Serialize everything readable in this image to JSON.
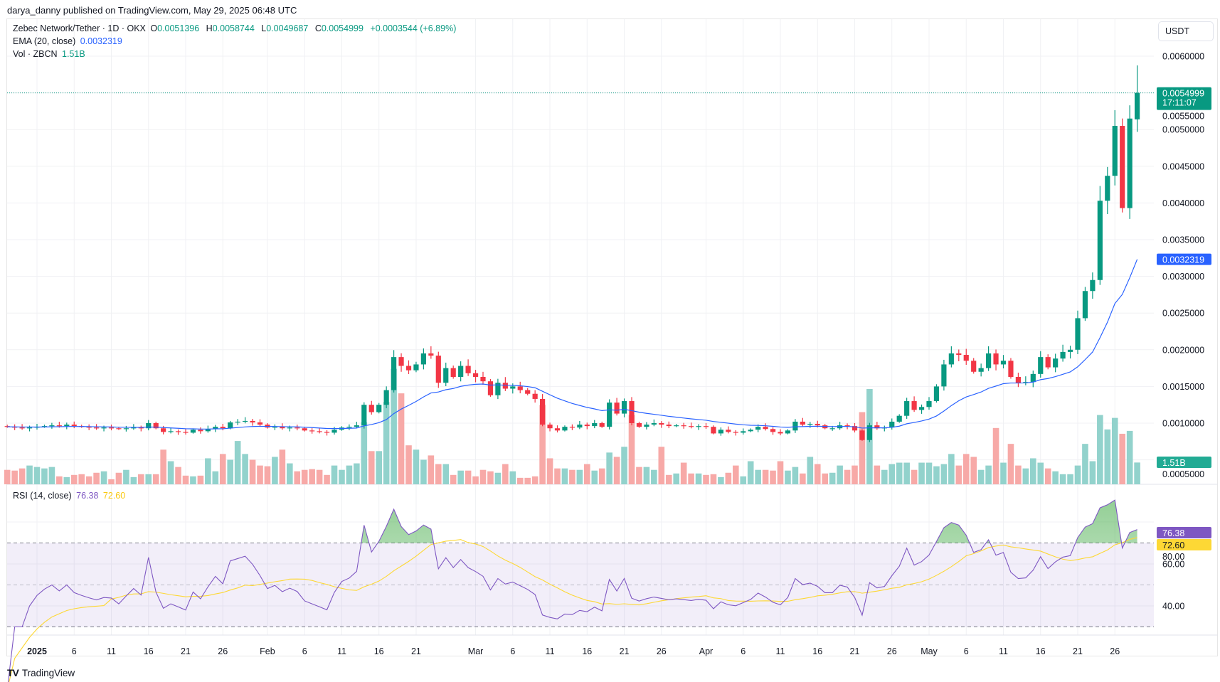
{
  "header": {
    "published": "darya_danny published on TradingView.com, May 29, 2025 06:48 UTC"
  },
  "legend": {
    "symbol": "Zebec Network/Tether · 1D · OKX",
    "o_label": "O",
    "o": "0.0051396",
    "h_label": "H",
    "h": "0.0058744",
    "l_label": "L",
    "l": "0.0049687",
    "c_label": "C",
    "c": "0.0054999",
    "change": "+0.0003544 (+6.89%)",
    "ema_label": "EMA (20, close)",
    "ema_value": "0.0032319",
    "vol_label": "Vol · ZBCN",
    "vol_value": "1.51B",
    "rsi_label": "RSI (14, close)",
    "rsi_value": "76.38",
    "rsi_ma_value": "72.60"
  },
  "currency_button": "USDT",
  "badges": {
    "price": "0.0054999",
    "countdown": "17:11:07",
    "ema": "0.0032319",
    "volume": "1.51B",
    "rsi": "76.38",
    "rsi_ma": "72.60"
  },
  "colors": {
    "up": "#089981",
    "down": "#f23645",
    "ema": "#2962ff",
    "rsi": "#7e57c2",
    "rsi_ma": "#fdd835"
  },
  "branding": "TradingView",
  "chart_data": [
    {
      "type": "candlestick",
      "title": "Zebec Network/Tether · 1D · OKX",
      "start_date": "2024-12-28",
      "end_date": "2025-05-29",
      "ylim": [
        0.0005,
        0.0061
      ],
      "y_ticks": [
        "0.0060000",
        "0.0055000",
        "0.0050000",
        "0.0045000",
        "0.0040000",
        "0.0035000",
        "0.0030000",
        "0.0025000",
        "0.0020000",
        "0.0015000",
        "0.0010000",
        "0.0005000"
      ],
      "y_tick_values": [
        0.006,
        0.0055,
        0.005,
        0.0045,
        0.004,
        0.0035,
        0.003,
        0.0025,
        0.002,
        0.0015,
        0.001,
        0.0005
      ],
      "first_open": 0.00096,
      "last_candle": {
        "open": 0.0051396,
        "high": 0.0058744,
        "low": 0.0049687,
        "close": 0.0054999
      },
      "close": [
        0.00095,
        0.00094,
        0.00093,
        0.00094,
        0.00095,
        0.00096,
        0.00097,
        0.00096,
        0.00098,
        0.00096,
        0.00095,
        0.00094,
        0.00093,
        0.00094,
        0.00093,
        0.00092,
        0.00093,
        0.00094,
        0.00093,
        0.001,
        0.00093,
        0.00088,
        0.00089,
        0.00088,
        0.00087,
        0.00091,
        0.00089,
        0.00092,
        0.00095,
        0.00093,
        0.00101,
        0.00102,
        0.00103,
        0.00101,
        0.00098,
        0.00094,
        0.00095,
        0.00093,
        0.00094,
        0.00093,
        0.0009,
        0.00089,
        0.00088,
        0.00087,
        0.00091,
        0.00094,
        0.00095,
        0.00097,
        0.00125,
        0.00115,
        0.00125,
        0.00145,
        0.0019,
        0.00178,
        0.00172,
        0.0018,
        0.00195,
        0.00192,
        0.00155,
        0.00175,
        0.00163,
        0.00178,
        0.00168,
        0.00163,
        0.00157,
        0.00138,
        0.00155,
        0.00147,
        0.0015,
        0.00145,
        0.0014,
        0.00133,
        0.00098,
        0.00093,
        0.0009,
        0.00095,
        0.00094,
        0.00098,
        0.00096,
        0.001,
        0.00095,
        0.00128,
        0.00113,
        0.0013,
        0.001,
        0.00095,
        0.00098,
        0.001,
        0.00098,
        0.00096,
        0.00097,
        0.00096,
        0.00095,
        0.00096,
        0.00095,
        0.00086,
        0.00091,
        0.00088,
        0.00087,
        0.00089,
        0.00091,
        0.00095,
        0.00092,
        0.00088,
        0.00086,
        0.0009,
        0.00102,
        0.00098,
        0.00099,
        0.00097,
        0.00093,
        0.00093,
        0.00097,
        0.00096,
        0.0009,
        0.00077,
        0.00097,
        0.00093,
        0.00094,
        0.00102,
        0.0011,
        0.0013,
        0.00118,
        0.00122,
        0.0013,
        0.0015,
        0.0018,
        0.00195,
        0.00193,
        0.00185,
        0.0017,
        0.00175,
        0.00195,
        0.0018,
        0.00185,
        0.00163,
        0.00155,
        0.00156,
        0.00167,
        0.0019,
        0.00176,
        0.00188,
        0.00197,
        0.002,
        0.00243,
        0.0028,
        0.00295,
        0.00403,
        0.00437,
        0.00505,
        0.00393,
        0.00515,
        0.0054999
      ],
      "volume_billions": [
        1.0,
        0.95,
        1.1,
        1.3,
        1.2,
        1.1,
        1.2,
        0.55,
        0.5,
        0.65,
        0.7,
        0.55,
        0.8,
        0.9,
        0.35,
        0.8,
        1.0,
        0.5,
        0.7,
        0.7,
        0.7,
        2.4,
        1.6,
        1.2,
        0.6,
        0.55,
        0.6,
        1.8,
        0.9,
        2.1,
        1.7,
        3.0,
        2.1,
        1.7,
        1.3,
        1.25,
        1.9,
        2.4,
        1.45,
        0.9,
        1.0,
        1.05,
        1.0,
        0.65,
        1.3,
        1.0,
        1.3,
        1.45,
        4.3,
        2.3,
        2.3,
        5.7,
        8.0,
        6.3,
        2.7,
        2.4,
        1.7,
        2.0,
        1.4,
        1.4,
        0.65,
        0.95,
        0.95,
        0.55,
        1.0,
        0.9,
        0.8,
        1.4,
        0.9,
        0.45,
        0.45,
        0.55,
        5.5,
        1.8,
        1.1,
        1.1,
        1.0,
        1.0,
        1.4,
        0.95,
        1.1,
        2.2,
        1.9,
        2.6,
        4.8,
        1.2,
        1.2,
        1.0,
        2.6,
        0.65,
        0.75,
        1.5,
        0.75,
        0.75,
        0.65,
        0.7,
        0.5,
        0.8,
        1.3,
        0.55,
        1.6,
        1.0,
        1.0,
        0.95,
        1.6,
        0.95,
        1.2,
        0.75,
        1.9,
        1.4,
        0.75,
        0.8,
        1.3,
        1.0,
        1.3,
        5.0,
        6.6,
        1.3,
        1.0,
        1.4,
        1.5,
        1.5,
        1.0,
        1.5,
        1.5,
        1.25,
        1.4,
        2.1,
        1.3,
        2.1,
        1.9,
        1.0,
        1.3,
        3.9,
        1.5,
        2.8,
        1.3,
        1.1,
        1.8,
        1.5,
        1.1,
        0.9,
        0.7,
        0.7,
        1.3,
        2.8,
        1.6,
        4.8,
        3.8,
        4.6,
        3.5,
        3.7,
        1.51
      ],
      "x_ticks": [
        {
          "label": "2025",
          "day": 4,
          "bold": true
        },
        {
          "label": "6",
          "day": 9
        },
        {
          "label": "11",
          "day": 14
        },
        {
          "label": "16",
          "day": 19
        },
        {
          "label": "21",
          "day": 24
        },
        {
          "label": "26",
          "day": 29
        },
        {
          "label": "Feb",
          "day": 35
        },
        {
          "label": "6",
          "day": 40
        },
        {
          "label": "11",
          "day": 45
        },
        {
          "label": "16",
          "day": 50
        },
        {
          "label": "21",
          "day": 55
        },
        {
          "label": "Mar",
          "day": 63
        },
        {
          "label": "6",
          "day": 68
        },
        {
          "label": "11",
          "day": 73
        },
        {
          "label": "16",
          "day": 78
        },
        {
          "label": "21",
          "day": 83
        },
        {
          "label": "26",
          "day": 88
        },
        {
          "label": "Apr",
          "day": 94
        },
        {
          "label": "6",
          "day": 99
        },
        {
          "label": "11",
          "day": 104
        },
        {
          "label": "16",
          "day": 109
        },
        {
          "label": "21",
          "day": 114
        },
        {
          "label": "26",
          "day": 119
        },
        {
          "label": "May",
          "day": 124
        },
        {
          "label": "6",
          "day": 129
        },
        {
          "label": "11",
          "day": 134
        },
        {
          "label": "16",
          "day": 139
        },
        {
          "label": "21",
          "day": 144
        },
        {
          "label": "26",
          "day": 149
        }
      ],
      "series": [
        {
          "name": "EMA (20, close)",
          "last": 0.0032319
        },
        {
          "name": "Vol · ZBCN",
          "last": "1.51B"
        }
      ]
    },
    {
      "type": "line",
      "title": "RSI (14, close)",
      "ylim": [
        20,
        95
      ],
      "y_ticks": [
        "80.00",
        "60.00",
        "40.00"
      ],
      "y_tick_values": [
        80,
        60,
        40
      ],
      "bands": [
        30,
        50,
        70
      ],
      "series": [
        {
          "name": "RSI",
          "last": 76.38
        },
        {
          "name": "RSI MA",
          "last": 72.6
        }
      ]
    }
  ]
}
